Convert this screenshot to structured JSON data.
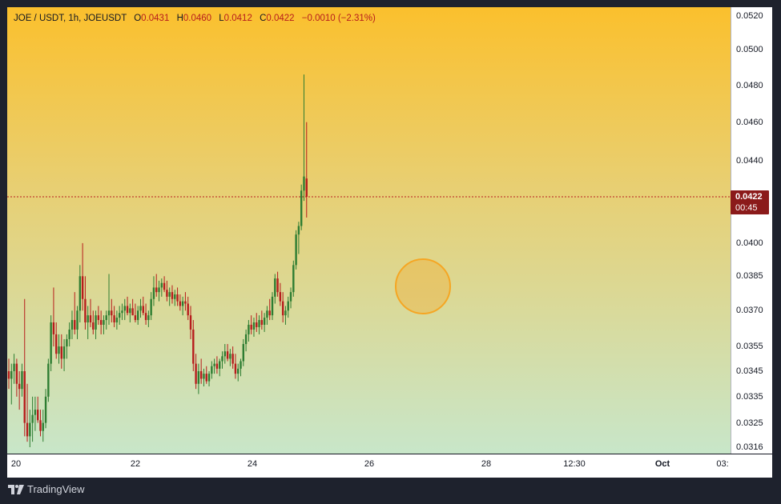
{
  "legend": {
    "symbol": "JOE / USDT, 1h, JOEUSDT",
    "open_label": "O",
    "open": "0.0431",
    "high_label": "H",
    "high": "0.0460",
    "low_label": "L",
    "low": "0.0412",
    "close_label": "C",
    "close": "0.0422",
    "change": "−0.0010 (−2.31%)"
  },
  "last_price": {
    "price": "0.0422",
    "countdown": "00:45"
  },
  "brand": "TradingView",
  "colors": {
    "up": "#2e7d32",
    "down": "#b71c1c",
    "last_line": "#b71c1c",
    "marker": "#f5a623"
  },
  "chart_data": {
    "type": "candlestick",
    "symbol": "JOEUSDT",
    "interval": "1h",
    "y_axis_ticks": [
      "0.0520",
      "0.0500",
      "0.0480",
      "0.0460",
      "0.0440",
      "0.0400",
      "0.0385",
      "0.0370",
      "0.0355",
      "0.0345",
      "0.0335",
      "0.0325",
      "0.0316"
    ],
    "x_axis_ticks": [
      "20",
      "22",
      "24",
      "26",
      "28",
      "12:30",
      "Oct",
      "03:"
    ],
    "scale": "log",
    "ylim": [
      0.0312,
      0.0525
    ],
    "candles_ohlc": [
      [
        0.0345,
        0.035,
        0.0338,
        0.0342
      ],
      [
        0.0342,
        0.0348,
        0.0332,
        0.0345
      ],
      [
        0.0345,
        0.0352,
        0.034,
        0.0348
      ],
      [
        0.0348,
        0.035,
        0.0335,
        0.034
      ],
      [
        0.034,
        0.0345,
        0.033,
        0.0338
      ],
      [
        0.0338,
        0.0348,
        0.0335,
        0.0345
      ],
      [
        0.0345,
        0.0375,
        0.032,
        0.0325
      ],
      [
        0.0325,
        0.034,
        0.0318,
        0.032
      ],
      [
        0.032,
        0.033,
        0.0316,
        0.0325
      ],
      [
        0.0325,
        0.0335,
        0.0318,
        0.0328
      ],
      [
        0.0328,
        0.0335,
        0.0322,
        0.033
      ],
      [
        0.033,
        0.0335,
        0.0325,
        0.0326
      ],
      [
        0.0326,
        0.033,
        0.032,
        0.0322
      ],
      [
        0.0322,
        0.033,
        0.0318,
        0.0325
      ],
      [
        0.0325,
        0.0338,
        0.0323,
        0.0335
      ],
      [
        0.0335,
        0.035,
        0.0333,
        0.0348
      ],
      [
        0.0348,
        0.0368,
        0.0345,
        0.0365
      ],
      [
        0.0365,
        0.038,
        0.0355,
        0.036
      ],
      [
        0.036,
        0.0365,
        0.035,
        0.0352
      ],
      [
        0.0352,
        0.036,
        0.0348,
        0.0355
      ],
      [
        0.0355,
        0.036,
        0.0346,
        0.035
      ],
      [
        0.035,
        0.0358,
        0.0345,
        0.0355
      ],
      [
        0.0355,
        0.036,
        0.035,
        0.0358
      ],
      [
        0.0358,
        0.0365,
        0.0355,
        0.0362
      ],
      [
        0.0362,
        0.037,
        0.0358,
        0.0366
      ],
      [
        0.0366,
        0.0378,
        0.036,
        0.0362
      ],
      [
        0.0362,
        0.0372,
        0.0358,
        0.037
      ],
      [
        0.037,
        0.039,
        0.0365,
        0.0385
      ],
      [
        0.0385,
        0.04,
        0.037,
        0.0375
      ],
      [
        0.0375,
        0.0385,
        0.0362,
        0.0365
      ],
      [
        0.0365,
        0.0372,
        0.0358,
        0.0368
      ],
      [
        0.0368,
        0.0375,
        0.0363,
        0.0365
      ],
      [
        0.0365,
        0.037,
        0.036,
        0.0362
      ],
      [
        0.0362,
        0.037,
        0.0358,
        0.0368
      ],
      [
        0.0368,
        0.0372,
        0.0364,
        0.0366
      ],
      [
        0.0366,
        0.037,
        0.036,
        0.0364
      ],
      [
        0.0364,
        0.0368,
        0.036,
        0.0366
      ],
      [
        0.0366,
        0.037,
        0.0362,
        0.0368
      ],
      [
        0.0368,
        0.0386,
        0.0364,
        0.037
      ],
      [
        0.037,
        0.0375,
        0.0365,
        0.0368
      ],
      [
        0.0368,
        0.0372,
        0.0363,
        0.0365
      ],
      [
        0.0365,
        0.037,
        0.0362,
        0.0367
      ],
      [
        0.0367,
        0.0372,
        0.0364,
        0.0369
      ],
      [
        0.0369,
        0.0373,
        0.0366,
        0.037
      ],
      [
        0.037,
        0.0375,
        0.0366,
        0.0372
      ],
      [
        0.0372,
        0.0376,
        0.0368,
        0.0369
      ],
      [
        0.0369,
        0.0373,
        0.0365,
        0.0371
      ],
      [
        0.0371,
        0.0375,
        0.0368,
        0.0368
      ],
      [
        0.0368,
        0.0373,
        0.0365,
        0.0366
      ],
      [
        0.0366,
        0.0372,
        0.0364,
        0.037
      ],
      [
        0.037,
        0.0375,
        0.0367,
        0.0372
      ],
      [
        0.0372,
        0.0376,
        0.0368,
        0.0369
      ],
      [
        0.0369,
        0.0373,
        0.0364,
        0.0366
      ],
      [
        0.0366,
        0.037,
        0.0363,
        0.0368
      ],
      [
        0.0368,
        0.0378,
        0.0366,
        0.0375
      ],
      [
        0.0375,
        0.0385,
        0.0372,
        0.038
      ],
      [
        0.038,
        0.0386,
        0.0376,
        0.0378
      ],
      [
        0.0378,
        0.0383,
        0.0374,
        0.038
      ],
      [
        0.038,
        0.0384,
        0.0376,
        0.0382
      ],
      [
        0.0382,
        0.0385,
        0.0378,
        0.0379
      ],
      [
        0.0379,
        0.0383,
        0.0374,
        0.0376
      ],
      [
        0.0376,
        0.038,
        0.0372,
        0.0378
      ],
      [
        0.0378,
        0.0381,
        0.0373,
        0.0375
      ],
      [
        0.0375,
        0.0379,
        0.0372,
        0.0377
      ],
      [
        0.0377,
        0.038,
        0.0372,
        0.0374
      ],
      [
        0.0374,
        0.0377,
        0.037,
        0.0372
      ],
      [
        0.0372,
        0.0376,
        0.0368,
        0.0374
      ],
      [
        0.0374,
        0.0378,
        0.037,
        0.0373
      ],
      [
        0.0373,
        0.0376,
        0.0366,
        0.0368
      ],
      [
        0.0368,
        0.0372,
        0.0358,
        0.0362
      ],
      [
        0.0362,
        0.0366,
        0.0345,
        0.0348
      ],
      [
        0.0348,
        0.0352,
        0.0338,
        0.034
      ],
      [
        0.034,
        0.0348,
        0.0336,
        0.0345
      ],
      [
        0.0345,
        0.035,
        0.034,
        0.0342
      ],
      [
        0.0342,
        0.0346,
        0.0339,
        0.0344
      ],
      [
        0.0344,
        0.0347,
        0.034,
        0.0341
      ],
      [
        0.0341,
        0.0345,
        0.0339,
        0.0344
      ],
      [
        0.0344,
        0.0349,
        0.0342,
        0.0347
      ],
      [
        0.0347,
        0.035,
        0.0344,
        0.0348
      ],
      [
        0.0348,
        0.0351,
        0.0344,
        0.0346
      ],
      [
        0.0346,
        0.035,
        0.0343,
        0.0349
      ],
      [
        0.0349,
        0.0353,
        0.0346,
        0.0351
      ],
      [
        0.0351,
        0.0356,
        0.0348,
        0.0353
      ],
      [
        0.0353,
        0.0356,
        0.0349,
        0.035
      ],
      [
        0.035,
        0.0354,
        0.0347,
        0.0352
      ],
      [
        0.0352,
        0.0355,
        0.0346,
        0.0348
      ],
      [
        0.0348,
        0.0352,
        0.0342,
        0.0344
      ],
      [
        0.0344,
        0.0348,
        0.0341,
        0.0346
      ],
      [
        0.0346,
        0.035,
        0.0343,
        0.0349
      ],
      [
        0.0349,
        0.0358,
        0.0347,
        0.0356
      ],
      [
        0.0356,
        0.0362,
        0.0353,
        0.036
      ],
      [
        0.036,
        0.0366,
        0.0357,
        0.0364
      ],
      [
        0.0364,
        0.0368,
        0.036,
        0.0362
      ],
      [
        0.0362,
        0.0367,
        0.0359,
        0.0365
      ],
      [
        0.0365,
        0.0369,
        0.0361,
        0.0363
      ],
      [
        0.0363,
        0.0368,
        0.036,
        0.0366
      ],
      [
        0.0366,
        0.037,
        0.0362,
        0.0364
      ],
      [
        0.0364,
        0.0369,
        0.0361,
        0.0367
      ],
      [
        0.0367,
        0.0372,
        0.0364,
        0.037
      ],
      [
        0.037,
        0.0375,
        0.0366,
        0.0368
      ],
      [
        0.0368,
        0.0378,
        0.0366,
        0.0376
      ],
      [
        0.0376,
        0.0386,
        0.0373,
        0.0384
      ],
      [
        0.0384,
        0.0387,
        0.0376,
        0.0378
      ],
      [
        0.0378,
        0.0382,
        0.0372,
        0.0374
      ],
      [
        0.0374,
        0.0378,
        0.0365,
        0.0368
      ],
      [
        0.0368,
        0.0372,
        0.0364,
        0.037
      ],
      [
        0.037,
        0.0376,
        0.0367,
        0.0374
      ],
      [
        0.0374,
        0.038,
        0.0371,
        0.0378
      ],
      [
        0.0378,
        0.0392,
        0.0376,
        0.039
      ],
      [
        0.039,
        0.0406,
        0.0388,
        0.0404
      ],
      [
        0.0404,
        0.041,
        0.0395,
        0.0408
      ],
      [
        0.0408,
        0.0428,
        0.0406,
        0.0425
      ],
      [
        0.0425,
        0.0486,
        0.042,
        0.0432
      ],
      [
        0.0431,
        0.046,
        0.0412,
        0.0422
      ]
    ]
  }
}
